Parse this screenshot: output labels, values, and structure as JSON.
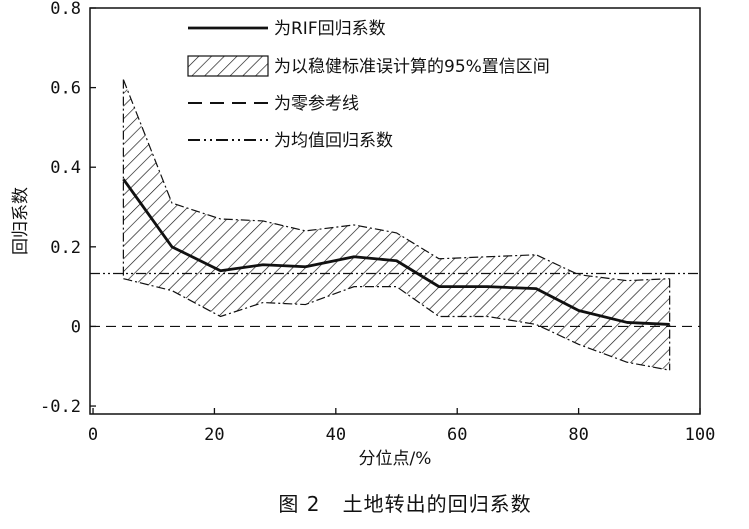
{
  "caption": "图 2   土地转出的回归系数",
  "chart_data": {
    "type": "line",
    "xlabel": "分位点/%",
    "ylabel": "回归系数",
    "xlim": [
      -0.5,
      100
    ],
    "ylim": [
      -0.22,
      0.8
    ],
    "x_ticks": [
      0,
      20,
      40,
      60,
      80,
      100
    ],
    "x_tick_labels": [
      "0",
      "20",
      "40",
      "60",
      "80",
      "100"
    ],
    "y_ticks": [
      -0.2,
      0,
      0.2,
      0.4,
      0.6,
      0.8
    ],
    "y_tick_labels": [
      "-0.2",
      "0",
      "0.2",
      "0.4",
      "0.6",
      "0.8"
    ],
    "grid": false,
    "legend_position": "top-center",
    "series": [
      {
        "name": "为RIF回归系数",
        "style": "solid",
        "x": [
          5,
          13,
          21,
          28,
          35,
          43,
          50,
          57,
          65,
          73,
          80,
          88,
          95
        ],
        "y": [
          0.37,
          0.2,
          0.14,
          0.155,
          0.15,
          0.175,
          0.165,
          0.1,
          0.1,
          0.095,
          0.04,
          0.01,
          0.005
        ]
      },
      {
        "name": "为以稳健标准误计算的95%置信区间",
        "style": "hatched-band",
        "x": [
          5,
          13,
          21,
          28,
          35,
          43,
          50,
          57,
          65,
          73,
          80,
          88,
          95
        ],
        "upper": [
          0.62,
          0.31,
          0.27,
          0.265,
          0.24,
          0.255,
          0.235,
          0.17,
          0.175,
          0.18,
          0.13,
          0.115,
          0.12
        ],
        "lower": [
          0.12,
          0.09,
          0.025,
          0.06,
          0.055,
          0.1,
          0.1,
          0.025,
          0.025,
          0.005,
          -0.045,
          -0.09,
          -0.11
        ]
      },
      {
        "name": "为零参考线",
        "style": "dashed",
        "y_const": 0
      },
      {
        "name": "为均值回归系数",
        "style": "dash-dot",
        "y_const": 0.133
      }
    ]
  }
}
